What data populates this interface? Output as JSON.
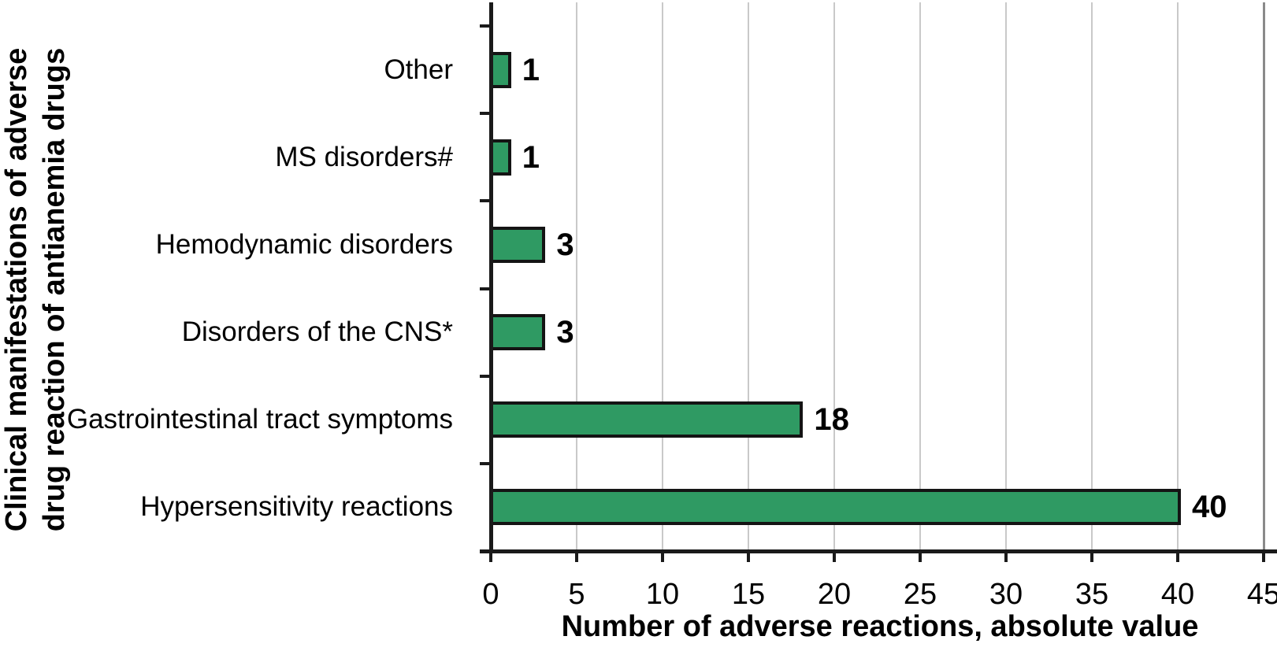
{
  "chart_data": {
    "type": "bar",
    "orientation": "horizontal",
    "categories": [
      "Other",
      "MS disorders#",
      "Hemodynamic disorders",
      "Disorders of the CNS*",
      "Gastrointestinal tract symptoms",
      "Hypersensitivity reactions"
    ],
    "values": [
      1,
      1,
      3,
      3,
      18,
      40
    ],
    "value_labels": [
      "1",
      "1",
      "3",
      "3",
      "18",
      "40"
    ],
    "xlabel": "Number of adverse reactions, absolute value",
    "ylabel": "Clinical manifestations of adverse drug reaction of antianemia drugs",
    "ylabel_lines": [
      "Clinical manifestations of adverse",
      "drug reaction of antianemia drugs"
    ],
    "xlim": [
      0,
      45
    ],
    "xticks": [
      0,
      5,
      10,
      15,
      20,
      25,
      30,
      35,
      40,
      45
    ],
    "grid": true,
    "legend": "none",
    "colors": {
      "bar_fill": "#2f9a63",
      "bar_border": "#141414",
      "axis": "#1a1a1a",
      "gridline": "#c9c9c9",
      "plot_right_border": "#8a8a8a",
      "text": "#000000"
    }
  }
}
